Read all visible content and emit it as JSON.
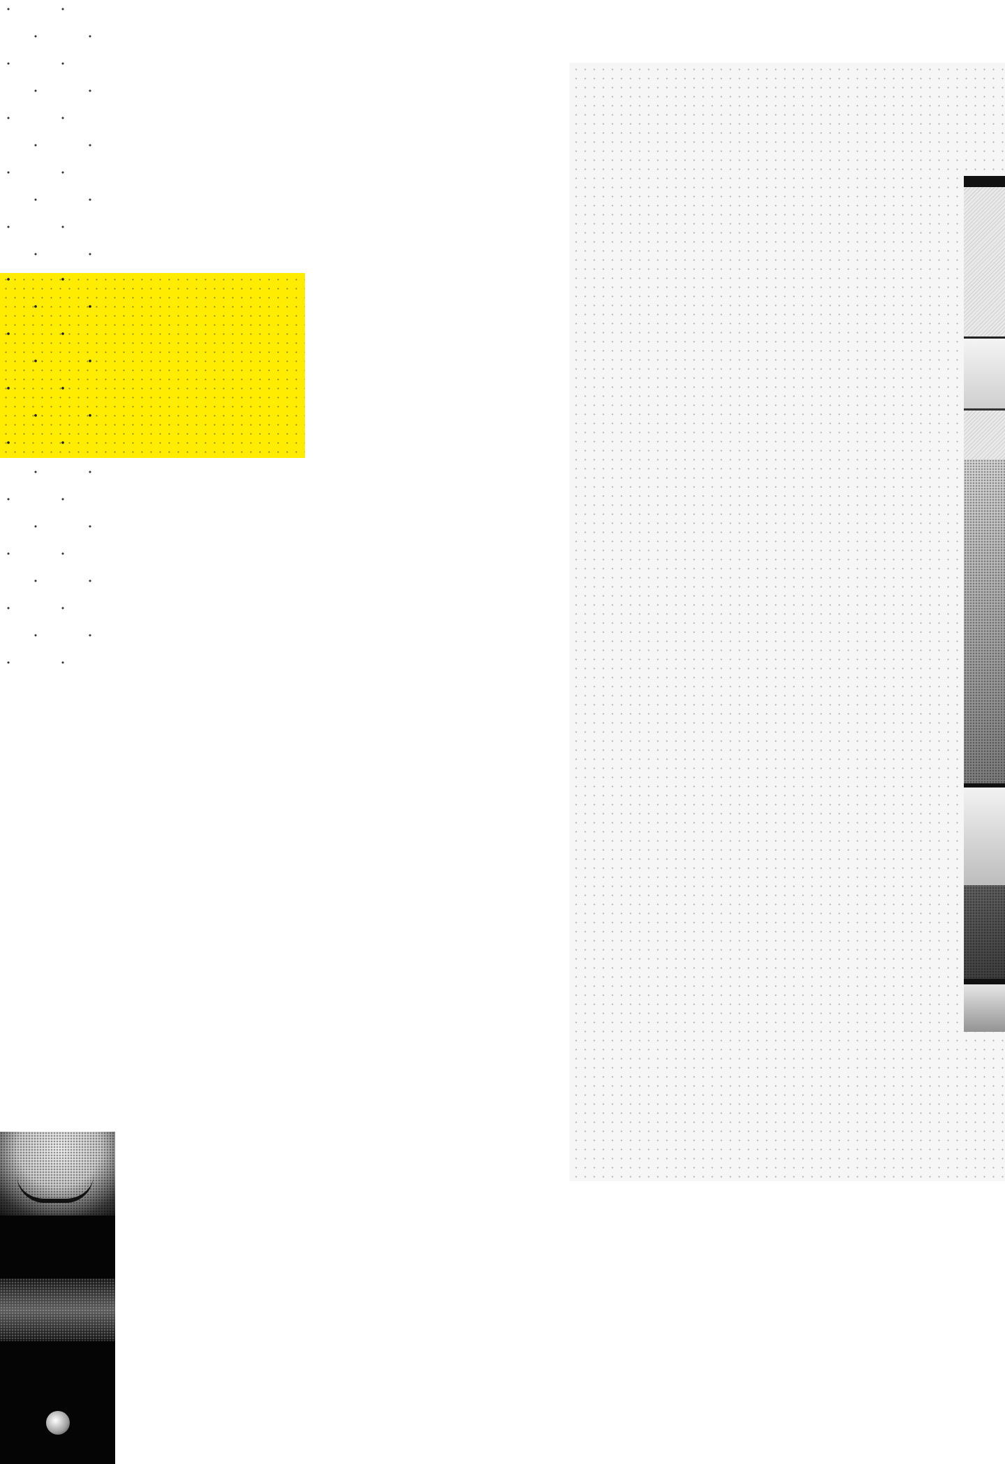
{
  "page": {
    "colors": {
      "background": "#ffffff",
      "accent_yellow": "#ffec00",
      "panel_gray": "#f6f6f6",
      "dot_color": "#333333"
    },
    "images": {
      "right_photo": "halftone-staircase-photo",
      "left_photo": "halftone-portrait-photo"
    }
  }
}
